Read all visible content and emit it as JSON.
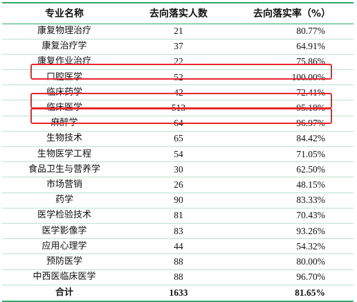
{
  "header": {
    "major": "专业名称",
    "count": "去向落实人数",
    "rate": "去向落实率（%）"
  },
  "rows": [
    {
      "major": "康复物理治疗",
      "count": "21",
      "rate": "80.77%"
    },
    {
      "major": "康复治疗学",
      "count": "37",
      "rate": "64.91%"
    },
    {
      "major": "康复作业治疗",
      "count": "22",
      "rate": "75.86%"
    },
    {
      "major": "口腔医学",
      "count": "52",
      "rate": "100.00%"
    },
    {
      "major": "临床药学",
      "count": "42",
      "rate": "72.41%"
    },
    {
      "major": "临床医学",
      "count": "513",
      "rate": "95.18%"
    },
    {
      "major": "麻醉学",
      "count": "64",
      "rate": "96.97%"
    },
    {
      "major": "生物技术",
      "count": "65",
      "rate": "84.42%"
    },
    {
      "major": "生物医学工程",
      "count": "54",
      "rate": "71.05%"
    },
    {
      "major": "食品卫生与营养学",
      "count": "30",
      "rate": "62.50%"
    },
    {
      "major": "市场营销",
      "count": "26",
      "rate": "48.15%"
    },
    {
      "major": "药学",
      "count": "90",
      "rate": "83.33%"
    },
    {
      "major": "医学检验技术",
      "count": "81",
      "rate": "70.43%"
    },
    {
      "major": "医学影像学",
      "count": "83",
      "rate": "93.26%"
    },
    {
      "major": "应用心理学",
      "count": "44",
      "rate": "54.32%"
    },
    {
      "major": "预防医学",
      "count": "88",
      "rate": "80.00%"
    },
    {
      "major": "中西医临床医学",
      "count": "88",
      "rate": "96.70%"
    }
  ],
  "total": {
    "major": "合计",
    "count": "1633",
    "rate": "81.65%"
  },
  "colors": {
    "rule": "#2ea86a",
    "row_line": "#b9e3cc",
    "highlight": "#e8262a"
  }
}
